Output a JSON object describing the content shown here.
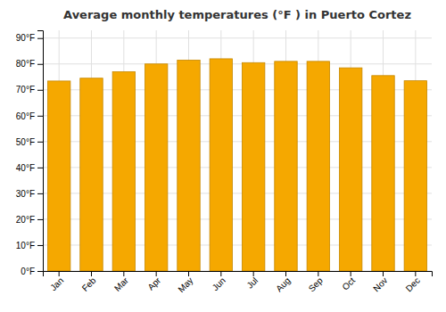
{
  "chart_data": {
    "type": "bar",
    "title": "Average monthly temperatures (°F ) in Puerto Cortez",
    "categories": [
      "Jan",
      "Feb",
      "Mar",
      "Apr",
      "May",
      "Jun",
      "Jul",
      "Aug",
      "Sep",
      "Oct",
      "Nov",
      "Dec"
    ],
    "values": [
      73.4,
      74.5,
      77.0,
      80.0,
      81.5,
      82.0,
      80.5,
      81.0,
      81.0,
      78.5,
      75.5,
      73.5
    ],
    "color": "#F5A800",
    "ylim": [
      0,
      93
    ],
    "yticks": [
      {
        "value": 0,
        "label": "0°F"
      },
      {
        "value": 10,
        "label": "10°F"
      },
      {
        "value": 20,
        "label": "20°F"
      },
      {
        "value": 30,
        "label": "30°F"
      },
      {
        "value": 40,
        "label": "40°F"
      },
      {
        "value": 50,
        "label": "50°F"
      },
      {
        "value": 60,
        "label": "60°F"
      },
      {
        "value": 70,
        "label": "70°F"
      },
      {
        "value": 80,
        "label": "80°F"
      },
      {
        "value": 90,
        "label": "90°F"
      }
    ],
    "grid": true
  }
}
